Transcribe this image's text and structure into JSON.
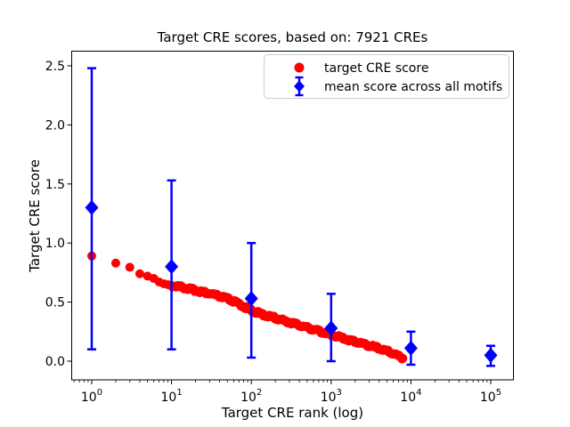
{
  "chart_data": {
    "type": "scatter",
    "title": "Target CRE scores, based on: 7921 CREs",
    "xlabel": "Target CRE rank (log)",
    "ylabel": "Target CRE score",
    "x_scale": "log",
    "xlim_log10": [
      -0.26,
      5.28
    ],
    "ylim": [
      -0.16,
      2.62
    ],
    "grid": false,
    "x_ticks": [
      {
        "base": "10",
        "exp": "0",
        "value": 1
      },
      {
        "base": "10",
        "exp": "1",
        "value": 10
      },
      {
        "base": "10",
        "exp": "2",
        "value": 100
      },
      {
        "base": "10",
        "exp": "3",
        "value": 1000
      },
      {
        "base": "10",
        "exp": "4",
        "value": 10000
      },
      {
        "base": "10",
        "exp": "5",
        "value": 100000
      }
    ],
    "y_ticks": [
      0.0,
      0.5,
      1.0,
      1.5,
      2.0,
      2.5
    ],
    "legend": {
      "position": "upper center-right",
      "border_color": "#cccccc",
      "entries": [
        {
          "label": "target CRE score",
          "marker": "circle",
          "color": "#ff0000"
        },
        {
          "label": "mean score across all motifs",
          "marker": "diamond-errorbar",
          "color": "#0000ff"
        }
      ]
    },
    "series": [
      {
        "name": "target CRE score",
        "type": "scatter",
        "marker": "circle",
        "color": "#ff0000",
        "n_points_total": 7921,
        "curve_anchors_rank_score": [
          [
            1,
            0.89
          ],
          [
            2,
            0.83
          ],
          [
            3,
            0.795
          ],
          [
            4,
            0.74
          ],
          [
            5,
            0.72
          ],
          [
            6,
            0.7
          ],
          [
            7,
            0.67
          ],
          [
            8,
            0.655
          ],
          [
            9,
            0.648
          ],
          [
            10,
            0.64
          ],
          [
            13,
            0.63
          ],
          [
            16,
            0.615
          ],
          [
            20,
            0.6
          ],
          [
            25,
            0.585
          ],
          [
            32,
            0.568
          ],
          [
            40,
            0.55
          ],
          [
            50,
            0.53
          ],
          [
            63,
            0.5
          ],
          [
            79,
            0.465
          ],
          [
            100,
            0.43
          ],
          [
            126,
            0.405
          ],
          [
            158,
            0.385
          ],
          [
            200,
            0.365
          ],
          [
            251,
            0.345
          ],
          [
            316,
            0.325
          ],
          [
            398,
            0.305
          ],
          [
            501,
            0.285
          ],
          [
            631,
            0.265
          ],
          [
            794,
            0.245
          ],
          [
            1000,
            0.225
          ],
          [
            1259,
            0.205
          ],
          [
            1585,
            0.185
          ],
          [
            2000,
            0.165
          ],
          [
            2512,
            0.147
          ],
          [
            3162,
            0.128
          ],
          [
            3981,
            0.108
          ],
          [
            5012,
            0.085
          ],
          [
            6310,
            0.06
          ],
          [
            7921,
            0.025
          ]
        ]
      },
      {
        "name": "mean score across all motifs",
        "type": "errorbar",
        "marker": "diamond",
        "color": "#0000ff",
        "x": [
          1,
          10,
          100,
          1000,
          10000,
          100000
        ],
        "y": [
          1.3,
          0.8,
          0.53,
          0.28,
          0.11,
          0.05
        ],
        "y_upper": [
          2.48,
          1.53,
          1.0,
          0.57,
          0.25,
          0.13
        ],
        "y_lower": [
          0.1,
          0.1,
          0.03,
          0.0,
          -0.03,
          -0.04
        ]
      }
    ]
  }
}
